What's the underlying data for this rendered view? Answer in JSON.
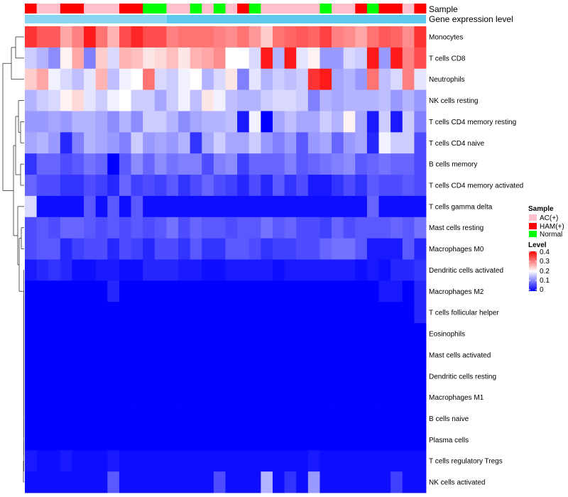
{
  "chart_data": {
    "type": "heatmap",
    "title": "",
    "annotation_rows": [
      "Sample",
      "Gene expression level"
    ],
    "sample_groups": [
      "H",
      "A",
      "A",
      "H",
      "H",
      "A",
      "A",
      "A",
      "H",
      "H",
      "N",
      "N",
      "A",
      "A",
      "N",
      "A",
      "N",
      "A",
      "H",
      "N",
      "A",
      "A",
      "A",
      "A",
      "A",
      "N",
      "A",
      "A",
      "H",
      "N",
      "H",
      "H",
      "A",
      "H"
    ],
    "group_colors": {
      "A": "#ffc0cb",
      "H": "#ff0000",
      "N": "#00ff00"
    },
    "expr_annotation_color": "#5bc8ec",
    "colorscale": {
      "low": "#0000ff",
      "mid": "#ffffff",
      "high": "#ff0000",
      "breaks": [
        0,
        0.2,
        0.4
      ]
    },
    "rows": [
      {
        "label": "Monocytes",
        "values": [
          0.36,
          0.33,
          0.33,
          0.27,
          0.3,
          0.38,
          0.31,
          0.26,
          0.34,
          0.37,
          0.34,
          0.34,
          0.3,
          0.31,
          0.31,
          0.31,
          0.3,
          0.29,
          0.31,
          0.28,
          0.24,
          0.31,
          0.32,
          0.33,
          0.32,
          0.35,
          0.3,
          0.29,
          0.27,
          0.31,
          0.33,
          0.32,
          0.29,
          0.36
        ]
      },
      {
        "label": "T cells CD8",
        "values": [
          0.16,
          0.14,
          0.11,
          0.21,
          0.27,
          0.1,
          0.24,
          0.17,
          0.26,
          0.25,
          0.22,
          0.23,
          0.25,
          0.22,
          0.26,
          0.27,
          0.29,
          0.2,
          0.2,
          0.17,
          0.38,
          0.14,
          0.38,
          0.18,
          0.21,
          0.12,
          0.12,
          0.17,
          0.16,
          0.38,
          0.12,
          0.38,
          0.3,
          0.34
        ]
      },
      {
        "label": "Neutrophils",
        "values": [
          0.24,
          0.27,
          0.19,
          0.17,
          0.15,
          0.18,
          0.26,
          0.15,
          0.19,
          0.2,
          0.31,
          0.17,
          0.16,
          0.19,
          0.2,
          0.14,
          0.17,
          0.22,
          0.1,
          0.18,
          0.14,
          0.16,
          0.15,
          0.16,
          0.36,
          0.38,
          0.13,
          0.14,
          0.12,
          0.31,
          0.15,
          0.17,
          0.3,
          0.18
        ]
      },
      {
        "label": "NK cells resting",
        "values": [
          0.14,
          0.16,
          0.17,
          0.21,
          0.23,
          0.18,
          0.16,
          0.19,
          0.2,
          0.16,
          0.16,
          0.13,
          0.16,
          0.19,
          0.15,
          0.22,
          0.19,
          0.15,
          0.14,
          0.14,
          0.16,
          0.17,
          0.17,
          0.16,
          0.1,
          0.14,
          0.13,
          0.14,
          0.14,
          0.14,
          0.15,
          0.12,
          0.14,
          0.12
        ]
      },
      {
        "label": "T cells CD4 memory resting",
        "values": [
          0.12,
          0.12,
          0.13,
          0.12,
          0.14,
          0.14,
          0.13,
          0.11,
          0.14,
          0.11,
          0.16,
          0.16,
          0.14,
          0.11,
          0.13,
          0.14,
          0.14,
          0.15,
          0.02,
          0.19,
          0.0,
          0.13,
          0.15,
          0.13,
          0.13,
          0.16,
          0.14,
          0.21,
          0.13,
          0.02,
          0.16,
          0.02,
          0.16,
          0.1
        ]
      },
      {
        "label": "T cells CD4 naive",
        "values": [
          0.13,
          0.14,
          0.12,
          0.03,
          0.1,
          0.14,
          0.13,
          0.12,
          0.1,
          0.16,
          0.12,
          0.13,
          0.12,
          0.14,
          0.04,
          0.13,
          0.16,
          0.13,
          0.13,
          0.16,
          0.12,
          0.1,
          0.12,
          0.07,
          0.12,
          0.13,
          0.08,
          0.12,
          0.13,
          0.03,
          0.19,
          0.16,
          0.16,
          0.06
        ]
      },
      {
        "label": "B cells memory",
        "values": [
          0.04,
          0.08,
          0.08,
          0.06,
          0.07,
          0.09,
          0.08,
          0.0,
          0.07,
          0.11,
          0.08,
          0.11,
          0.09,
          0.1,
          0.1,
          0.06,
          0.1,
          0.11,
          0.05,
          0.08,
          0.08,
          0.08,
          0.1,
          0.07,
          0.08,
          0.09,
          0.1,
          0.11,
          0.07,
          0.08,
          0.09,
          0.08,
          0.08,
          0.06
        ]
      },
      {
        "label": "T cells CD4 memory activated",
        "values": [
          0.08,
          0.06,
          0.06,
          0.04,
          0.04,
          0.06,
          0.05,
          0.03,
          0.08,
          0.05,
          0.06,
          0.05,
          0.07,
          0.04,
          0.06,
          0.08,
          0.06,
          0.05,
          0.03,
          0.06,
          0.03,
          0.07,
          0.04,
          0.06,
          0.02,
          0.02,
          0.04,
          0.06,
          0.04,
          0.07,
          0.06,
          0.06,
          0.07,
          0.06
        ]
      },
      {
        "label": "T cells gamma delta",
        "values": [
          0.17,
          0.01,
          0.01,
          0.01,
          0.01,
          0.07,
          0.01,
          0.07,
          0.01,
          0.07,
          0.01,
          0.01,
          0.01,
          0.01,
          0.01,
          0.01,
          0.01,
          0.01,
          0.01,
          0.01,
          0.01,
          0.01,
          0.01,
          0.01,
          0.01,
          0.01,
          0.01,
          0.01,
          0.01,
          0.08,
          0.01,
          0.01,
          0.01,
          0.01
        ]
      },
      {
        "label": "Mast cells resting",
        "values": [
          0.06,
          0.07,
          0.06,
          0.08,
          0.08,
          0.07,
          0.06,
          0.07,
          0.06,
          0.07,
          0.06,
          0.07,
          0.09,
          0.06,
          0.08,
          0.07,
          0.07,
          0.06,
          0.07,
          0.07,
          0.09,
          0.07,
          0.08,
          0.06,
          0.06,
          0.05,
          0.08,
          0.06,
          0.07,
          0.07,
          0.07,
          0.08,
          0.07,
          0.09
        ]
      },
      {
        "label": "Macrophages M0",
        "values": [
          0.06,
          0.07,
          0.07,
          0.03,
          0.05,
          0.06,
          0.06,
          0.03,
          0.06,
          0.05,
          0.03,
          0.06,
          0.06,
          0.04,
          0.07,
          0.04,
          0.04,
          0.07,
          0.07,
          0.06,
          0.04,
          0.05,
          0.05,
          0.06,
          0.06,
          0.08,
          0.09,
          0.09,
          0.07,
          0.02,
          0.02,
          0.02,
          0.07,
          0.03
        ]
      },
      {
        "label": "Dendritic cells activated",
        "values": [
          0.02,
          0.03,
          0.04,
          0.03,
          0.01,
          0.01,
          0.02,
          0.02,
          0.01,
          0.01,
          0.03,
          0.03,
          0.03,
          0.02,
          0.02,
          0.01,
          0.01,
          0.02,
          0.02,
          0.02,
          0.02,
          0.01,
          0.02,
          0.02,
          0.02,
          0.02,
          0.02,
          0.02,
          0.01,
          0.02,
          0.01,
          0.03,
          0.03,
          0.04
        ]
      },
      {
        "label": "Macrophages M2",
        "values": [
          0.0,
          0.0,
          0.0,
          0.0,
          0.0,
          0.0,
          0.0,
          0.03,
          0.0,
          0.0,
          0.0,
          0.0,
          0.0,
          0.0,
          0.0,
          0.0,
          0.0,
          0.0,
          0.0,
          0.0,
          0.0,
          0.0,
          0.0,
          0.0,
          0.0,
          0.0,
          0.0,
          0.0,
          0.0,
          0.0,
          0.02,
          0.02,
          0.0,
          0.03
        ]
      },
      {
        "label": "T cells follicular helper",
        "values": [
          0.0,
          0.0,
          0.0,
          0.0,
          0.0,
          0.0,
          0.0,
          0.0,
          0.0,
          0.0,
          0.0,
          0.0,
          0.0,
          0.0,
          0.0,
          0.0,
          0.0,
          0.0,
          0.0,
          0.0,
          0.0,
          0.0,
          0.0,
          0.0,
          0.0,
          0.0,
          0.0,
          0.0,
          0.0,
          0.0,
          0.0,
          0.0,
          0.0,
          0.03
        ]
      },
      {
        "label": "Eosinophils",
        "values": [
          0.0,
          0.0,
          0.0,
          0.0,
          0.0,
          0.0,
          0.0,
          0.0,
          0.0,
          0.0,
          0.0,
          0.0,
          0.0,
          0.0,
          0.0,
          0.0,
          0.0,
          0.0,
          0.0,
          0.0,
          0.0,
          0.0,
          0.0,
          0.0,
          0.0,
          0.0,
          0.0,
          0.0,
          0.0,
          0.0,
          0.0,
          0.0,
          0.0,
          0.0
        ]
      },
      {
        "label": "Mast cells activated",
        "values": [
          0.0,
          0.0,
          0.0,
          0.0,
          0.0,
          0.0,
          0.0,
          0.0,
          0.0,
          0.0,
          0.0,
          0.0,
          0.0,
          0.0,
          0.0,
          0.0,
          0.0,
          0.0,
          0.0,
          0.0,
          0.0,
          0.0,
          0.0,
          0.0,
          0.0,
          0.0,
          0.0,
          0.0,
          0.0,
          0.0,
          0.0,
          0.0,
          0.0,
          0.0
        ]
      },
      {
        "label": "Dendritic cells resting",
        "values": [
          0.0,
          0.0,
          0.0,
          0.0,
          0.0,
          0.0,
          0.0,
          0.0,
          0.0,
          0.0,
          0.0,
          0.0,
          0.0,
          0.0,
          0.0,
          0.0,
          0.0,
          0.0,
          0.0,
          0.0,
          0.0,
          0.0,
          0.0,
          0.0,
          0.0,
          0.0,
          0.0,
          0.0,
          0.0,
          0.0,
          0.0,
          0.0,
          0.0,
          0.0
        ]
      },
      {
        "label": "Macrophages M1",
        "values": [
          0.0,
          0.0,
          0.0,
          0.0,
          0.0,
          0.0,
          0.0,
          0.0,
          0.0,
          0.0,
          0.0,
          0.0,
          0.0,
          0.0,
          0.0,
          0.0,
          0.0,
          0.0,
          0.0,
          0.0,
          0.0,
          0.0,
          0.0,
          0.0,
          0.0,
          0.0,
          0.0,
          0.0,
          0.0,
          0.0,
          0.0,
          0.0,
          0.0,
          0.0
        ]
      },
      {
        "label": "B cells naive",
        "values": [
          0.0,
          0.0,
          0.0,
          0.0,
          0.0,
          0.0,
          0.0,
          0.0,
          0.0,
          0.0,
          0.0,
          0.0,
          0.0,
          0.0,
          0.0,
          0.0,
          0.0,
          0.0,
          0.0,
          0.0,
          0.0,
          0.0,
          0.0,
          0.0,
          0.0,
          0.0,
          0.0,
          0.0,
          0.0,
          0.0,
          0.0,
          0.0,
          0.0,
          0.0
        ]
      },
      {
        "label": "Plasma cells",
        "values": [
          0.0,
          0.0,
          0.0,
          0.0,
          0.0,
          0.0,
          0.0,
          0.0,
          0.0,
          0.0,
          0.0,
          0.0,
          0.0,
          0.0,
          0.0,
          0.0,
          0.0,
          0.0,
          0.0,
          0.0,
          0.0,
          0.0,
          0.0,
          0.0,
          0.0,
          0.0,
          0.0,
          0.0,
          0.0,
          0.0,
          0.0,
          0.0,
          0.0,
          0.0
        ]
      },
      {
        "label": "T cells regulatory  Tregs",
        "values": [
          0.02,
          0.01,
          0.01,
          0.02,
          0.01,
          0.01,
          0.01,
          0.02,
          0.01,
          0.01,
          0.01,
          0.01,
          0.01,
          0.01,
          0.01,
          0.01,
          0.01,
          0.01,
          0.01,
          0.01,
          0.01,
          0.01,
          0.01,
          0.01,
          0.02,
          0.01,
          0.01,
          0.01,
          0.01,
          0.01,
          0.01,
          0.01,
          0.01,
          0.01
        ]
      },
      {
        "label": "NK cells activated",
        "values": [
          0.01,
          0.01,
          0.01,
          0.01,
          0.01,
          0.01,
          0.01,
          0.07,
          0.01,
          0.01,
          0.01,
          0.01,
          0.01,
          0.01,
          0.01,
          0.01,
          0.06,
          0.01,
          0.01,
          0.01,
          0.14,
          0.01,
          0.04,
          0.01,
          0.12,
          0.01,
          0.01,
          0.01,
          0.01,
          0.01,
          0.01,
          0.05,
          0.01,
          0.01
        ]
      }
    ],
    "legend": {
      "sample_title": "Sample",
      "sample_items": [
        {
          "label": "AC(+)",
          "color": "#ffc0cb"
        },
        {
          "label": "HAM(+)",
          "color": "#ff0000"
        },
        {
          "label": "Normal",
          "color": "#00ff00"
        }
      ],
      "level_title": "Level",
      "level_ticks": [
        "0.4",
        "0.3",
        "0.2",
        "0.1",
        "0"
      ]
    }
  }
}
